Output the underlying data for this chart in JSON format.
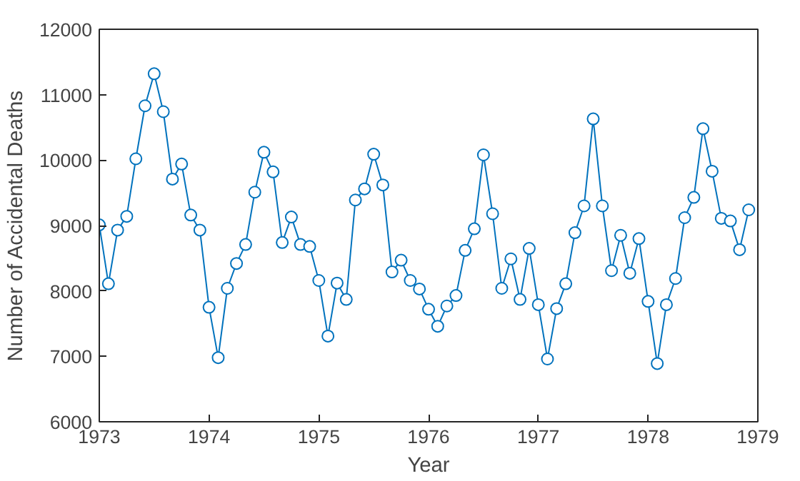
{
  "chart_data": {
    "type": "line",
    "xlabel": "Year",
    "ylabel": "Number of Accidental Deaths",
    "x": [
      1973,
      1973.0833,
      1973.1667,
      1973.25,
      1973.3333,
      1973.4167,
      1973.5,
      1973.5833,
      1973.6667,
      1973.75,
      1973.8333,
      1973.9167,
      1974,
      1974.0833,
      1974.1667,
      1974.25,
      1974.3333,
      1974.4167,
      1974.5,
      1974.5833,
      1974.6667,
      1974.75,
      1974.8333,
      1974.9167,
      1975,
      1975.0833,
      1975.1667,
      1975.25,
      1975.3333,
      1975.4167,
      1975.5,
      1975.5833,
      1975.6667,
      1975.75,
      1975.8333,
      1975.9167,
      1976,
      1976.0833,
      1976.1667,
      1976.25,
      1976.3333,
      1976.4167,
      1976.5,
      1976.5833,
      1976.6667,
      1976.75,
      1976.8333,
      1976.9167,
      1977,
      1977.0833,
      1977.1667,
      1977.25,
      1977.3333,
      1977.4167,
      1977.5,
      1977.5833,
      1977.6667,
      1977.75,
      1977.8333,
      1977.9167,
      1978,
      1978.0833,
      1978.1667,
      1978.25,
      1978.3333,
      1978.4167,
      1978.5,
      1978.5833,
      1978.6667,
      1978.75,
      1978.8333,
      1978.9167
    ],
    "series": [
      {
        "color": "#0072bd",
        "values": [
          9010,
          8110,
          8930,
          9140,
          10020,
          10830,
          11320,
          10740,
          9710,
          9940,
          9160,
          8930,
          7750,
          6980,
          8040,
          8420,
          8710,
          9510,
          10120,
          9820,
          8740,
          9130,
          8710,
          8680,
          8160,
          7310,
          8120,
          7870,
          9390,
          9560,
          10090,
          9620,
          8290,
          8470,
          8160,
          8030,
          7720,
          7460,
          7770,
          7930,
          8620,
          8950,
          10080,
          9180,
          8040,
          8490,
          7870,
          8650,
          7790,
          6960,
          7730,
          8110,
          8890,
          9300,
          10630,
          9300,
          8310,
          8850,
          8270,
          8800,
          7840,
          6890,
          7790,
          8190,
          9120,
          9430,
          10480,
          9830,
          9110,
          9070,
          8630,
          9240
        ]
      }
    ],
    "xlim": [
      1973,
      1979
    ],
    "xticks": [
      1973,
      1974,
      1975,
      1976,
      1977,
      1978,
      1979
    ],
    "ylim": [
      6000,
      12000
    ],
    "yticks": [
      6000,
      7000,
      8000,
      9000,
      10000,
      11000,
      12000
    ],
    "marker": "circle",
    "line_style": "solid",
    "grid": false
  }
}
